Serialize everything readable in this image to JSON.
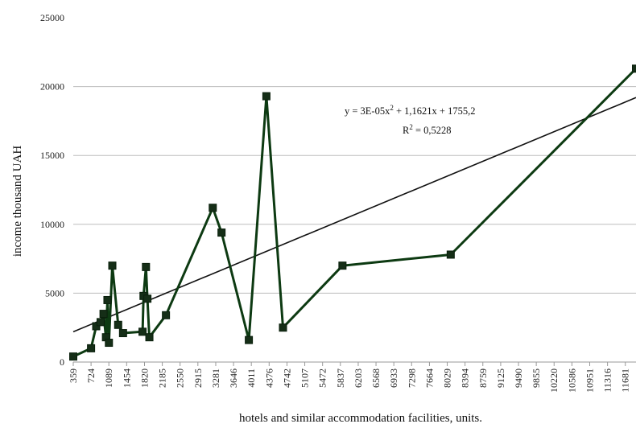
{
  "chart_data": {
    "type": "line",
    "title": "",
    "xlabel": "hotels and similar accommodation facilities, units.",
    "ylabel": "income thousand UAH",
    "ylim": [
      0,
      25000
    ],
    "yticks": [
      0,
      5000,
      10000,
      15000,
      20000,
      25000
    ],
    "xlim": [
      359,
      11900
    ],
    "xticks": [
      359,
      724,
      1089,
      1454,
      1820,
      2185,
      2550,
      2915,
      3281,
      3646,
      4011,
      4376,
      4742,
      5107,
      5472,
      5837,
      6203,
      6568,
      6933,
      7298,
      7664,
      8029,
      8394,
      8759,
      9125,
      9490,
      9855,
      10220,
      10586,
      10951,
      11316,
      11681
    ],
    "grid": "horizontal",
    "series": [
      {
        "values": [
          [
            359,
            400
          ],
          [
            724,
            1000
          ],
          [
            830,
            2600
          ],
          [
            920,
            2900
          ],
          [
            980,
            3500
          ],
          [
            1030,
            1800
          ],
          [
            1060,
            4500
          ],
          [
            1090,
            1400
          ],
          [
            1160,
            7000
          ],
          [
            1280,
            2700
          ],
          [
            1380,
            2100
          ],
          [
            1780,
            2200
          ],
          [
            1800,
            4800
          ],
          [
            1850,
            6900
          ],
          [
            1880,
            4600
          ],
          [
            1920,
            1800
          ],
          [
            2260,
            3400
          ],
          [
            3220,
            11200
          ],
          [
            3400,
            9400
          ],
          [
            3960,
            1600
          ],
          [
            4320,
            19300
          ],
          [
            4660,
            2500
          ],
          [
            5880,
            7000
          ],
          [
            8100,
            7800
          ],
          [
            11900,
            21300
          ]
        ]
      }
    ],
    "trendline": {
      "type": "polynomial",
      "equation": "y = 3E-05x² + 1,1621x + 1755,2",
      "equation_prefix": "y = 3E-05x",
      "equation_sup": "2",
      "equation_suffix": " + 1,1621x + 1755,2",
      "r2": "R² = 0,5228",
      "r2_prefix": "R",
      "r2_sup": "2",
      "r2_suffix": " = 0,5228",
      "points": [
        [
          359,
          2200
        ],
        [
          11900,
          19200
        ]
      ]
    },
    "colors": {
      "series_line": "#0d3a12",
      "marker_fill": "#152e17",
      "marker_stroke": "#0a1f0c",
      "trendline": "#111111",
      "grid": "#bdbdbd"
    }
  }
}
